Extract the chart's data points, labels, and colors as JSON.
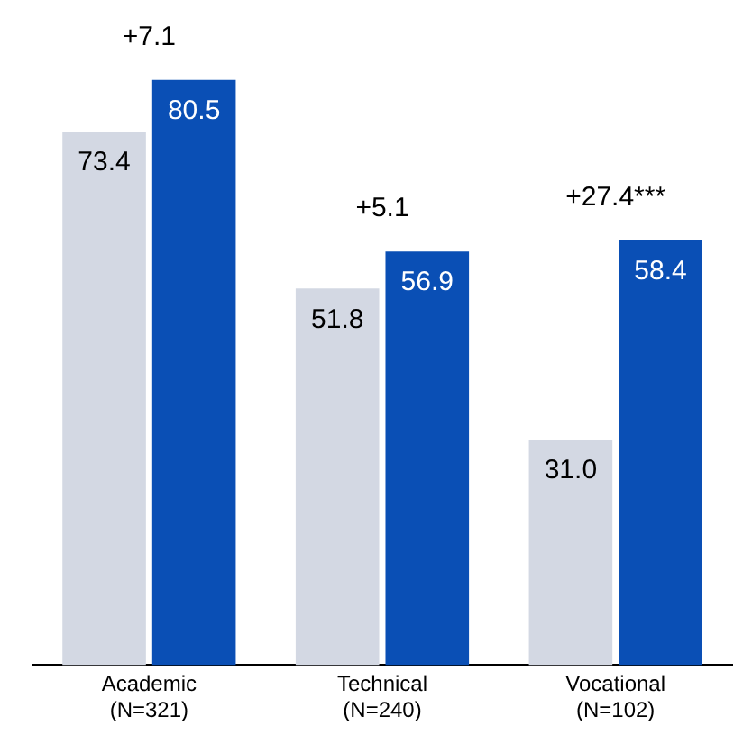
{
  "chart_data": {
    "type": "bar",
    "categories": [
      "Academic\n(N=321)",
      "Technical\n(N=240)",
      "Vocational\n(N=102)"
    ],
    "series": [
      {
        "color": "#d3d8e3",
        "values": [
          73.4,
          51.8,
          31.0
        ],
        "value_labels": [
          "73.4",
          "51.8",
          "31.0"
        ]
      },
      {
        "color": "#0a4fb5",
        "values": [
          80.5,
          56.9,
          58.4
        ],
        "value_labels": [
          "80.5",
          "56.9",
          "58.4"
        ]
      }
    ],
    "annotations": [
      "+7.1",
      "+5.1",
      "+27.4***"
    ],
    "grid": false,
    "legend": false
  }
}
